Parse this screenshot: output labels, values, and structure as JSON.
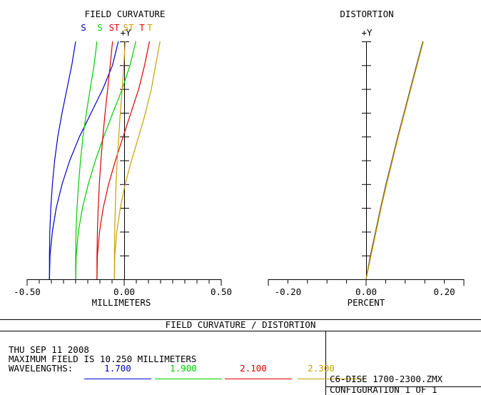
{
  "colors": {
    "blue": "#0000cc",
    "green": "#00cc00",
    "red": "#e00000",
    "gold": "#c8a000",
    "axis": "#000000"
  },
  "chart_data": [
    {
      "type": "line",
      "title": "FIELD CURVATURE",
      "xlabel": "MILLIMETERS",
      "ylabel": "+Y",
      "xlim": [
        -0.5,
        0.5
      ],
      "ylim": [
        0,
        1
      ],
      "x_tick_labels": [
        "-0.50",
        "0.00",
        "0.50"
      ],
      "legend_labels": [
        "S",
        "S",
        "ST",
        "ST",
        "T",
        "T"
      ],
      "series": [
        {
          "name": "S",
          "wavelength": "1.700",
          "color": "blue",
          "x": [
            -0.385,
            -0.385,
            -0.383,
            -0.378,
            -0.37,
            -0.358,
            -0.342,
            -0.32,
            -0.295,
            -0.27,
            -0.25
          ],
          "y": [
            0,
            0.1,
            0.2,
            0.3,
            0.4,
            0.5,
            0.6,
            0.7,
            0.8,
            0.9,
            1.0
          ]
        },
        {
          "name": "T",
          "wavelength": "1.700",
          "color": "blue",
          "x": [
            -0.385,
            -0.382,
            -0.37,
            -0.35,
            -0.32,
            -0.28,
            -0.23,
            -0.17,
            -0.11,
            -0.06,
            -0.03
          ],
          "y": [
            0,
            0.1,
            0.2,
            0.3,
            0.4,
            0.5,
            0.6,
            0.7,
            0.8,
            0.9,
            1.0
          ]
        },
        {
          "name": "S",
          "wavelength": "1.900",
          "color": "green",
          "x": [
            -0.25,
            -0.25,
            -0.248,
            -0.243,
            -0.235,
            -0.225,
            -0.212,
            -0.195,
            -0.175,
            -0.155,
            -0.14
          ],
          "y": [
            0,
            0.1,
            0.2,
            0.3,
            0.4,
            0.5,
            0.6,
            0.7,
            0.8,
            0.9,
            1.0
          ]
        },
        {
          "name": "T",
          "wavelength": "1.900",
          "color": "green",
          "x": [
            -0.25,
            -0.247,
            -0.236,
            -0.215,
            -0.185,
            -0.148,
            -0.105,
            -0.058,
            -0.01,
            0.03,
            0.06
          ],
          "y": [
            0,
            0.1,
            0.2,
            0.3,
            0.4,
            0.5,
            0.6,
            0.7,
            0.8,
            0.9,
            1.0
          ]
        },
        {
          "name": "S",
          "wavelength": "2.100",
          "color": "red",
          "x": [
            -0.14,
            -0.14,
            -0.138,
            -0.134,
            -0.128,
            -0.12,
            -0.11,
            -0.098,
            -0.085,
            -0.072,
            -0.06
          ],
          "y": [
            0,
            0.1,
            0.2,
            0.3,
            0.4,
            0.5,
            0.6,
            0.7,
            0.8,
            0.9,
            1.0
          ]
        },
        {
          "name": "T",
          "wavelength": "2.100",
          "color": "red",
          "x": [
            -0.14,
            -0.138,
            -0.127,
            -0.108,
            -0.08,
            -0.045,
            -0.005,
            0.035,
            0.075,
            0.105,
            0.13
          ],
          "y": [
            0,
            0.1,
            0.2,
            0.3,
            0.4,
            0.5,
            0.6,
            0.7,
            0.8,
            0.9,
            1.0
          ]
        },
        {
          "name": "S",
          "wavelength": "2.300",
          "color": "gold",
          "x": [
            -0.05,
            -0.05,
            -0.049,
            -0.046,
            -0.042,
            -0.036,
            -0.028,
            -0.02,
            -0.01,
            -0.002,
            0.005
          ],
          "y": [
            0,
            0.1,
            0.2,
            0.3,
            0.4,
            0.5,
            0.6,
            0.7,
            0.8,
            0.9,
            1.0
          ]
        },
        {
          "name": "T",
          "wavelength": "2.300",
          "color": "gold",
          "x": [
            -0.05,
            -0.048,
            -0.038,
            -0.02,
            0.005,
            0.038,
            0.075,
            0.11,
            0.14,
            0.162,
            0.185
          ],
          "y": [
            0,
            0.1,
            0.2,
            0.3,
            0.4,
            0.5,
            0.6,
            0.7,
            0.8,
            0.9,
            1.0
          ]
        }
      ]
    },
    {
      "type": "line",
      "title": "DISTORTION",
      "xlabel": "PERCENT",
      "ylabel": "+Y",
      "xlim": [
        -0.25,
        0.25
      ],
      "ylim": [
        0,
        1
      ],
      "x_tick_labels": [
        "-0.20",
        "0.00",
        "0.20"
      ],
      "series": [
        {
          "wavelength": "1.700",
          "color": "blue",
          "x": [
            0,
            0.011,
            0.024,
            0.037,
            0.051,
            0.066,
            0.081,
            0.097,
            0.113,
            0.129,
            0.145
          ],
          "y": [
            0,
            0.1,
            0.2,
            0.3,
            0.4,
            0.5,
            0.6,
            0.7,
            0.8,
            0.9,
            1.0
          ]
        },
        {
          "wavelength": "1.900",
          "color": "green",
          "x": [
            0,
            0.0115,
            0.0245,
            0.0375,
            0.0515,
            0.0665,
            0.0815,
            0.0975,
            0.1135,
            0.1295,
            0.1455
          ],
          "y": [
            0,
            0.1,
            0.2,
            0.3,
            0.4,
            0.5,
            0.6,
            0.7,
            0.8,
            0.9,
            1.0
          ]
        },
        {
          "wavelength": "2.100",
          "color": "red",
          "x": [
            0,
            0.012,
            0.025,
            0.038,
            0.052,
            0.067,
            0.082,
            0.098,
            0.114,
            0.13,
            0.146
          ],
          "y": [
            0,
            0.1,
            0.2,
            0.3,
            0.4,
            0.5,
            0.6,
            0.7,
            0.8,
            0.9,
            1.0
          ]
        },
        {
          "wavelength": "2.300",
          "color": "gold",
          "x": [
            0,
            0.0125,
            0.0255,
            0.0385,
            0.0525,
            0.0675,
            0.0825,
            0.0985,
            0.1145,
            0.1305,
            0.1465
          ],
          "y": [
            0,
            0.1,
            0.2,
            0.3,
            0.4,
            0.5,
            0.6,
            0.7,
            0.8,
            0.9,
            1.0
          ]
        }
      ]
    }
  ],
  "footer": {
    "title": "FIELD CURVATURE / DISTORTION",
    "date": "THU SEP 11 2008",
    "max_field": "MAXIMUM FIELD IS 10.250 MILLIMETERS",
    "wavelengths_label": "WAVELENGTHS:",
    "wavelengths": [
      {
        "value": "1.700",
        "color": "blue"
      },
      {
        "value": "1.900",
        "color": "green"
      },
      {
        "value": "2.100",
        "color": "red"
      },
      {
        "value": "2.300",
        "color": "gold"
      }
    ],
    "file_name": "C6-DISE 1700-2300.ZMX",
    "configuration": "CONFIGURATION 1 OF 1"
  }
}
